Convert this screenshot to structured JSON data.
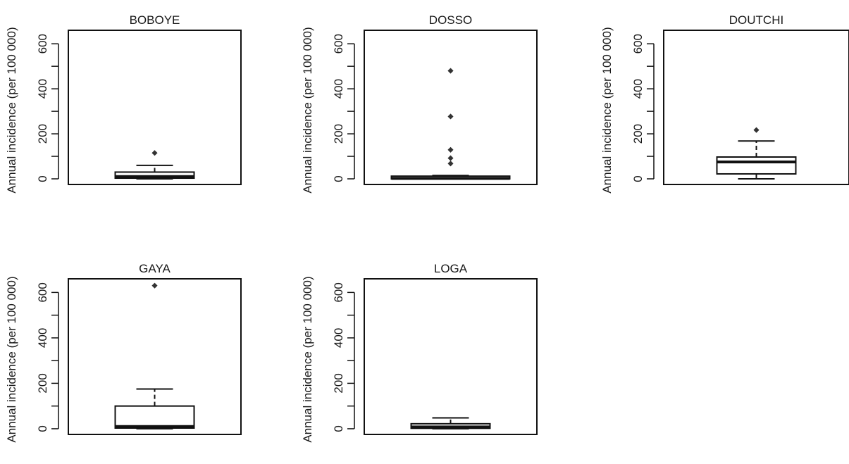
{
  "figure": {
    "chart_data": [
      {
        "type": "box",
        "title": "BOBOYE",
        "ylabel": "Annual incidence (per 100 000)",
        "ylim": [
          -25,
          660
        ],
        "yticks": [
          0,
          200,
          400,
          600
        ],
        "ytick_labels": [
          "0",
          "200",
          "400",
          "600"
        ],
        "box": {
          "whisker_low": 0,
          "q1": 3,
          "median": 10,
          "q3": 30,
          "whisker_high": 60
        },
        "outliers": [
          115
        ]
      },
      {
        "type": "box",
        "title": "DOSSO",
        "ylabel": "Annual incidence (per 100 000)",
        "ylim": [
          -25,
          660
        ],
        "yticks": [
          0,
          200,
          400,
          600
        ],
        "ytick_labels": [
          "0",
          "200",
          "400",
          "600"
        ],
        "box": {
          "whisker_low": 0,
          "q1": 0,
          "median": 2,
          "q3": 12,
          "whisker_high": 15
        },
        "outliers": [
          480,
          277,
          129,
          92,
          68
        ]
      },
      {
        "type": "box",
        "title": "DOUTCHI",
        "ylabel": "Annual incidence (per 100 000)",
        "ylim": [
          -25,
          660
        ],
        "yticks": [
          0,
          200,
          400,
          600
        ],
        "ytick_labels": [
          "0",
          "200",
          "400",
          "600"
        ],
        "box": {
          "whisker_low": 0,
          "q1": 22,
          "median": 75,
          "q3": 97,
          "whisker_high": 168
        },
        "outliers": [
          217
        ]
      },
      {
        "type": "box",
        "title": "GAYA",
        "ylabel": "Annual incidence (per 100 000)",
        "ylim": [
          -25,
          660
        ],
        "yticks": [
          0,
          200,
          400,
          600
        ],
        "ytick_labels": [
          "0",
          "200",
          "400",
          "600"
        ],
        "box": {
          "whisker_low": 0,
          "q1": 3,
          "median": 10,
          "q3": 100,
          "whisker_high": 175
        },
        "outliers": [
          630
        ]
      },
      {
        "type": "box",
        "title": "LOGA",
        "ylabel": "Annual incidence (per 100 000)",
        "ylim": [
          -25,
          660
        ],
        "yticks": [
          0,
          200,
          400,
          600
        ],
        "ytick_labels": [
          "0",
          "200",
          "400",
          "600"
        ],
        "box": {
          "whisker_low": 0,
          "q1": 2,
          "median": 8,
          "q3": 22,
          "whisker_high": 48
        },
        "outliers": []
      }
    ]
  }
}
